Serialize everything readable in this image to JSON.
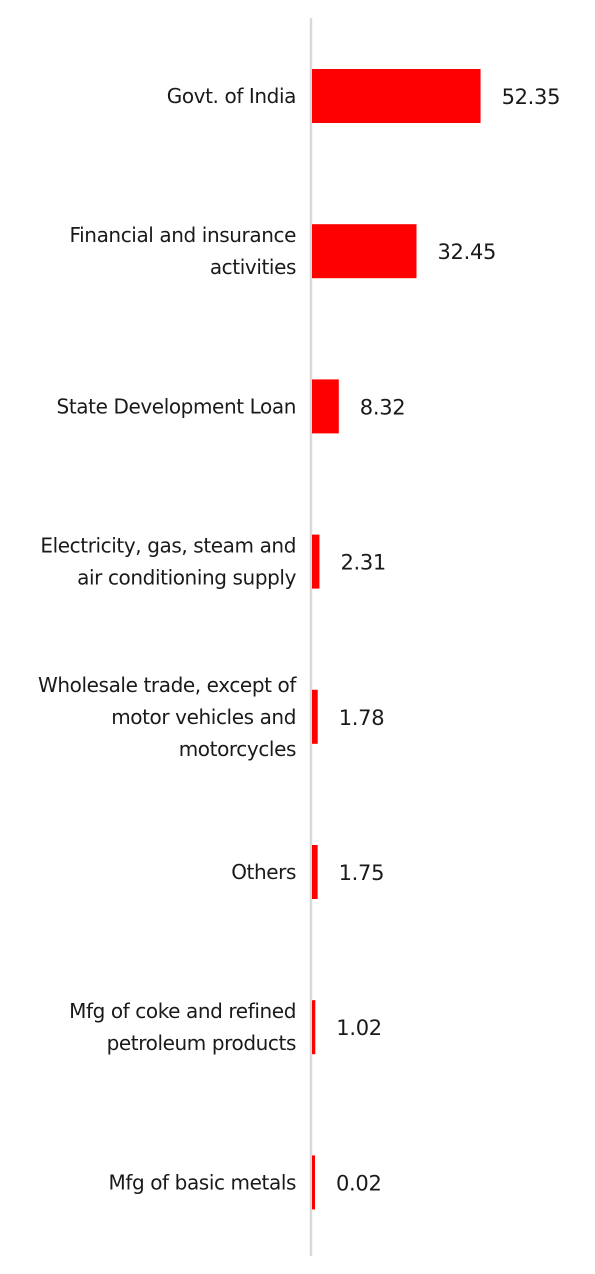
{
  "chart_data": {
    "type": "bar",
    "orientation": "horizontal",
    "categories": [
      [
        "Govt. of India"
      ],
      [
        "Financial and insurance",
        "activities"
      ],
      [
        "State Development Loan"
      ],
      [
        "Electricity, gas, steam and",
        "air conditioning supply"
      ],
      [
        "Wholesale trade, except of",
        "motor vehicles and",
        "motorcycles"
      ],
      [
        "Others"
      ],
      [
        "Mfg of coke and refined",
        "petroleum products"
      ],
      [
        "Mfg of basic metals"
      ]
    ],
    "values": [
      52.35,
      32.45,
      8.32,
      2.31,
      1.78,
      1.75,
      1.02,
      0.02
    ],
    "value_labels": [
      "52.35",
      "32.45",
      "8.32",
      "2.31",
      "1.78",
      "1.75",
      "1.02",
      "0.02"
    ],
    "xlim": [
      0,
      60
    ],
    "bar_color": "#ff0000",
    "axis_color": "#d9d9d9",
    "grid": false,
    "legend": "none"
  }
}
